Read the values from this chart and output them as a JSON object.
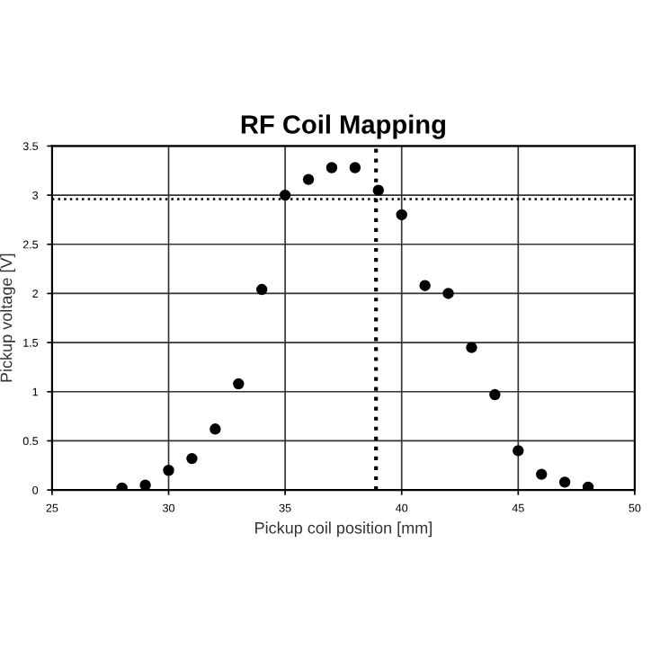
{
  "chart_data": {
    "type": "scatter",
    "title": "RF Coil Mapping",
    "xlabel": "Pickup coil position [mm]",
    "ylabel": "Pickup voltage [V]",
    "x": [
      28,
      29,
      30,
      31,
      32,
      33,
      34,
      35,
      36,
      37,
      38,
      39,
      40,
      41,
      42,
      43,
      44,
      45,
      46,
      47,
      48
    ],
    "series": [
      {
        "color": "#000000",
        "values": [
          0.02,
          0.05,
          0.2,
          0.32,
          0.62,
          1.08,
          2.04,
          3.0,
          3.16,
          3.28,
          3.28,
          3.05,
          2.8,
          2.08,
          2.0,
          1.45,
          0.97,
          0.4,
          0.16,
          0.08,
          0.03
        ]
      }
    ],
    "marker": "circle",
    "xlim": [
      25,
      50
    ],
    "xticks": [
      25,
      30,
      35,
      40,
      45,
      50
    ],
    "ylim": [
      0,
      3.5
    ],
    "yticks": [
      0,
      0.5,
      1,
      1.5,
      2,
      2.5,
      3,
      3.5
    ],
    "grid": true,
    "ref_lines": [
      {
        "axis": "x",
        "value": 38.9,
        "line_style": "dotted",
        "color": "#000000"
      },
      {
        "axis": "y",
        "value": 2.96,
        "line_style": "dotted",
        "color": "#000000"
      }
    ]
  }
}
